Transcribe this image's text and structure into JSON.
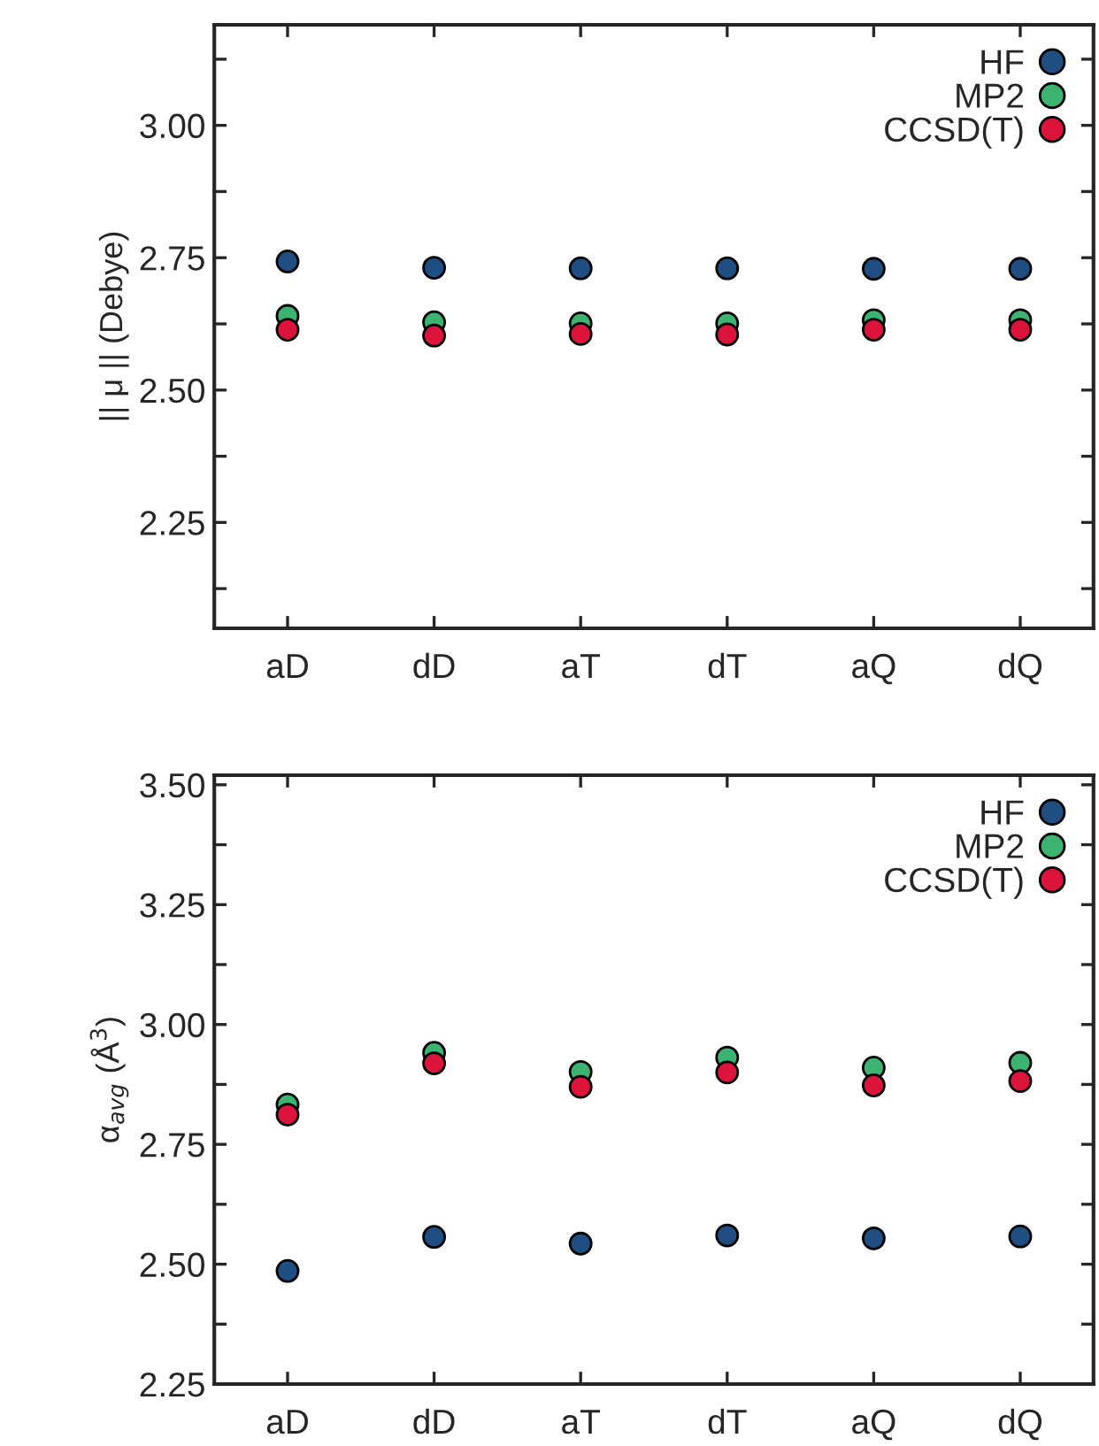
{
  "chart_data": [
    {
      "type": "scatter",
      "ylabel": "|| μ || (Debye)",
      "categories": [
        "aD",
        "dD",
        "aT",
        "dT",
        "aQ",
        "dQ"
      ],
      "ylim": [
        2.05,
        3.19
      ],
      "yticks": [
        {
          "value": 2.125,
          "label": null
        },
        2.25,
        {
          "value": 2.375,
          "label": null
        },
        {
          "value": 2.5,
          "label": "2.50"
        },
        {
          "value": 2.625,
          "label": null
        },
        2.75,
        {
          "value": 2.875,
          "label": null
        },
        {
          "value": 3,
          "label": "3.00"
        },
        {
          "value": 3.125,
          "label": null
        }
      ],
      "series": [
        {
          "name": "HF",
          "color": "#1f4e82",
          "values": [
            2.743,
            2.731,
            2.73,
            2.73,
            2.729,
            2.729
          ]
        },
        {
          "name": "MP2",
          "color": "#3cb371",
          "values": [
            2.64,
            2.628,
            2.626,
            2.626,
            2.632,
            2.632
          ]
        },
        {
          "name": "CCSD(T)",
          "color": "#dc143c",
          "values": [
            2.614,
            2.603,
            2.606,
            2.605,
            2.614,
            2.614
          ]
        }
      ],
      "legend": "top right",
      "marker": "circle",
      "grid": false
    },
    {
      "type": "scatter",
      "ylabel": "α$_{avg}$ (Å$^{3}$)",
      "categories": [
        "aD",
        "dD",
        "aT",
        "dT",
        "aQ",
        "dQ"
      ],
      "ylim": [
        2.25,
        3.52
      ],
      "yticks": [
        2.25,
        {
          "value": 2.375,
          "label": null
        },
        {
          "value": 2.5,
          "label": "2.50"
        },
        {
          "value": 2.625,
          "label": null
        },
        2.75,
        {
          "value": 2.875,
          "label": null
        },
        {
          "value": 3,
          "label": "3.00"
        },
        {
          "value": 3.125,
          "label": null
        },
        3.25,
        {
          "value": 3.375,
          "label": null
        },
        {
          "value": 3.5,
          "label": "3.50"
        }
      ],
      "series": [
        {
          "name": "HF",
          "color": "#1f4e82",
          "values": [
            2.486,
            2.557,
            2.543,
            2.56,
            2.554,
            2.558
          ]
        },
        {
          "name": "MP2",
          "color": "#3cb371",
          "values": [
            2.833,
            2.941,
            2.901,
            2.931,
            2.91,
            2.92
          ]
        },
        {
          "name": "CCSD(T)",
          "color": "#dc143c",
          "values": [
            2.812,
            2.919,
            2.87,
            2.9,
            2.873,
            2.882
          ]
        }
      ],
      "legend": "top right",
      "marker": "circle",
      "grid": false
    }
  ]
}
